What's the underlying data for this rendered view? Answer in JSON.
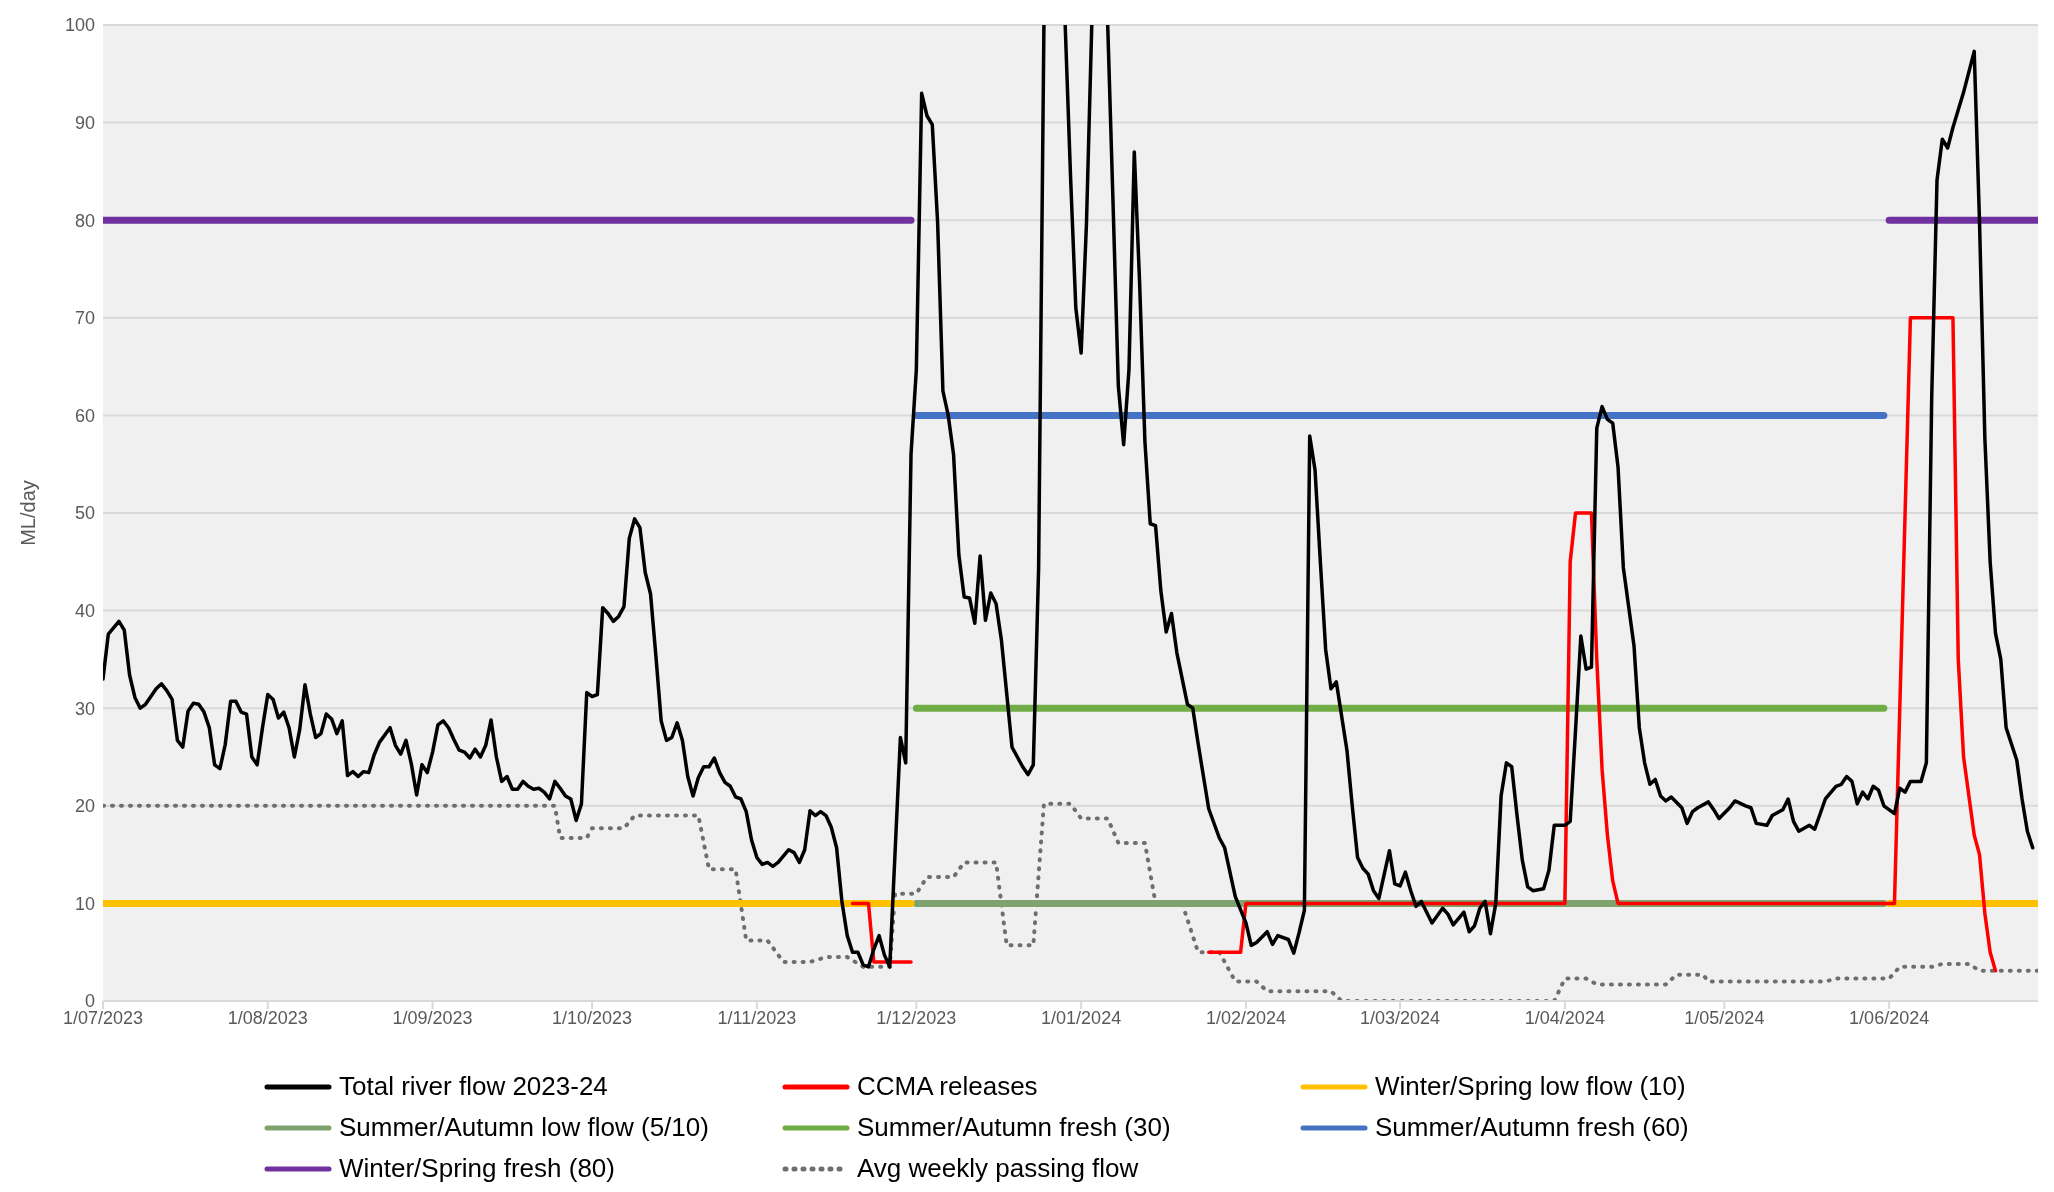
{
  "chart_data": {
    "type": "line",
    "ylabel": "ML/day",
    "ylim": [
      0,
      100
    ],
    "yticks": [
      0,
      10,
      20,
      30,
      40,
      50,
      60,
      70,
      80,
      90,
      100
    ],
    "xlim": [
      "2023-07-01",
      "2024-06-29"
    ],
    "xticks": [
      {
        "value": "2023-07-01",
        "label": "1/07/2023"
      },
      {
        "value": "2023-08-01",
        "label": "1/08/2023"
      },
      {
        "value": "2023-09-01",
        "label": "1/09/2023"
      },
      {
        "value": "2023-10-01",
        "label": "1/10/2023"
      },
      {
        "value": "2023-11-01",
        "label": "1/11/2023"
      },
      {
        "value": "2023-12-01",
        "label": "1/12/2023"
      },
      {
        "value": "2024-01-01",
        "label": "1/01/2024"
      },
      {
        "value": "2024-02-01",
        "label": "1/02/2024"
      },
      {
        "value": "2024-03-01",
        "label": "1/03/2024"
      },
      {
        "value": "2024-04-01",
        "label": "1/04/2024"
      },
      {
        "value": "2024-05-01",
        "label": "1/05/2024"
      },
      {
        "value": "2024-06-01",
        "label": "1/06/2024"
      }
    ],
    "grid": "y",
    "legend": "bottom",
    "marker": "none",
    "series": [
      {
        "name": "Total river flow 2023-24",
        "color": "#000000",
        "line_style": "solid",
        "x": [
          "2023-07-01",
          "2023-07-02",
          "2023-07-04",
          "2023-07-05",
          "2023-07-06",
          "2023-07-07",
          "2023-07-08",
          "2023-07-09",
          "2023-07-11",
          "2023-07-12",
          "2023-07-13",
          "2023-07-14",
          "2023-07-15",
          "2023-07-16",
          "2023-07-17",
          "2023-07-18",
          "2023-07-19",
          "2023-07-20",
          "2023-07-21",
          "2023-07-22",
          "2023-07-23",
          "2023-07-24",
          "2023-07-25",
          "2023-07-26",
          "2023-07-27",
          "2023-07-28",
          "2023-07-29",
          "2023-07-30",
          "2023-07-31",
          "2023-08-01",
          "2023-08-02",
          "2023-08-03",
          "2023-08-04",
          "2023-08-05",
          "2023-08-06",
          "2023-08-07",
          "2023-08-08",
          "2023-08-09",
          "2023-08-10",
          "2023-08-11",
          "2023-08-12",
          "2023-08-13",
          "2023-08-14",
          "2023-08-15",
          "2023-08-16",
          "2023-08-17",
          "2023-08-18",
          "2023-08-19",
          "2023-08-20",
          "2023-08-21",
          "2023-08-22",
          "2023-08-24",
          "2023-08-25",
          "2023-08-26",
          "2023-08-27",
          "2023-08-28",
          "2023-08-29",
          "2023-08-30",
          "2023-08-31",
          "2023-09-01",
          "2023-09-02",
          "2023-09-03",
          "2023-09-04",
          "2023-09-05",
          "2023-09-06",
          "2023-09-07",
          "2023-09-08",
          "2023-09-09",
          "2023-09-10",
          "2023-09-11",
          "2023-09-12",
          "2023-09-13",
          "2023-09-14",
          "2023-09-15",
          "2023-09-16",
          "2023-09-17",
          "2023-09-18",
          "2023-09-19",
          "2023-09-20",
          "2023-09-21",
          "2023-09-22",
          "2023-09-23",
          "2023-09-24",
          "2023-09-25",
          "2023-09-26",
          "2023-09-27",
          "2023-09-28",
          "2023-09-29",
          "2023-09-30",
          "2023-10-01",
          "2023-10-02",
          "2023-10-03",
          "2023-10-04",
          "2023-10-05",
          "2023-10-06",
          "2023-10-07",
          "2023-10-08",
          "2023-10-09",
          "2023-10-10",
          "2023-10-11",
          "2023-10-12",
          "2023-10-13",
          "2023-10-14",
          "2023-10-15",
          "2023-10-16",
          "2023-10-17",
          "2023-10-18",
          "2023-10-19",
          "2023-10-20",
          "2023-10-21",
          "2023-10-22",
          "2023-10-23",
          "2023-10-24",
          "2023-10-25",
          "2023-10-26",
          "2023-10-27",
          "2023-10-28",
          "2023-10-29",
          "2023-10-30",
          "2023-10-31",
          "2023-11-01",
          "2023-11-02",
          "2023-11-03",
          "2023-11-04",
          "2023-11-05",
          "2023-11-07",
          "2023-11-08",
          "2023-11-09",
          "2023-11-10",
          "2023-11-11",
          "2023-11-12",
          "2023-11-13",
          "2023-11-14",
          "2023-11-15",
          "2023-11-16",
          "2023-11-17",
          "2023-11-18",
          "2023-11-19",
          "2023-11-20",
          "2023-11-21",
          "2023-11-22",
          "2023-11-23",
          "2023-11-24",
          "2023-11-25",
          "2023-11-26",
          "2023-11-28",
          "2023-11-29",
          "2023-11-30",
          "2023-12-01",
          "2023-12-02",
          "2023-12-03",
          "2023-12-04",
          "2023-12-05",
          "2023-12-06",
          "2023-12-07",
          "2023-12-08",
          "2023-12-09",
          "2023-12-10",
          "2023-12-11",
          "2023-12-12",
          "2023-12-13",
          "2023-12-14",
          "2023-12-15",
          "2023-12-16",
          "2023-12-17",
          "2023-12-19",
          "2023-12-21",
          "2023-12-22",
          "2023-12-23",
          "2023-12-24",
          "2023-12-25",
          "2023-12-26",
          "2023-12-29",
          "2023-12-30",
          "2023-12-31",
          "2024-01-01",
          "2024-01-02",
          "2024-01-03",
          "2024-01-04",
          "2024-01-06",
          "2024-01-07",
          "2024-01-08",
          "2024-01-09",
          "2024-01-10",
          "2024-01-11",
          "2024-01-12",
          "2024-01-13",
          "2024-01-14",
          "2024-01-15",
          "2024-01-16",
          "2024-01-17",
          "2024-01-18",
          "2024-01-19",
          "2024-01-21",
          "2024-01-22",
          "2024-01-23",
          "2024-01-25",
          "2024-01-27",
          "2024-01-28",
          "2024-01-30",
          "2024-02-01",
          "2024-02-02",
          "2024-02-03",
          "2024-02-05",
          "2024-02-06",
          "2024-02-07",
          "2024-02-09",
          "2024-02-10",
          "2024-02-11",
          "2024-02-12",
          "2024-02-13",
          "2024-02-14",
          "2024-02-15",
          "2024-02-16",
          "2024-02-17",
          "2024-02-18",
          "2024-02-20",
          "2024-02-21",
          "2024-02-22",
          "2024-02-23",
          "2024-02-24",
          "2024-02-25",
          "2024-02-26",
          "2024-02-28",
          "2024-02-29",
          "2024-03-01",
          "2024-03-02",
          "2024-03-03",
          "2024-03-04",
          "2024-03-05",
          "2024-03-07",
          "2024-03-09",
          "2024-03-10",
          "2024-03-11",
          "2024-03-13",
          "2024-03-14",
          "2024-03-15",
          "2024-03-16",
          "2024-03-17",
          "2024-03-18",
          "2024-03-19",
          "2024-03-20",
          "2024-03-21",
          "2024-03-22",
          "2024-03-23",
          "2024-03-24",
          "2024-03-25",
          "2024-03-26",
          "2024-03-28",
          "2024-03-29",
          "2024-03-30",
          "2024-04-01",
          "2024-04-02",
          "2024-04-03",
          "2024-04-04",
          "2024-04-05",
          "2024-04-06",
          "2024-04-07",
          "2024-04-08",
          "2024-04-09",
          "2024-04-10",
          "2024-04-11",
          "2024-04-12",
          "2024-04-14",
          "2024-04-15",
          "2024-04-16",
          "2024-04-17",
          "2024-04-18",
          "2024-04-19",
          "2024-04-20",
          "2024-04-21",
          "2024-04-23",
          "2024-04-24",
          "2024-04-25",
          "2024-04-26",
          "2024-04-28",
          "2024-04-29",
          "2024-04-30",
          "2024-05-02",
          "2024-05-03",
          "2024-05-05",
          "2024-05-06",
          "2024-05-07",
          "2024-05-09",
          "2024-05-10",
          "2024-05-12",
          "2024-05-13",
          "2024-05-14",
          "2024-05-15",
          "2024-05-17",
          "2024-05-18",
          "2024-05-20",
          "2024-05-22",
          "2024-05-23",
          "2024-05-24",
          "2024-05-25",
          "2024-05-26",
          "2024-05-27",
          "2024-05-28",
          "2024-05-29",
          "2024-05-30",
          "2024-05-31",
          "2024-06-02",
          "2024-06-03",
          "2024-06-04",
          "2024-06-05",
          "2024-06-07",
          "2024-06-08",
          "2024-06-09",
          "2024-06-10",
          "2024-06-11",
          "2024-06-12",
          "2024-06-13",
          "2024-06-15",
          "2024-06-17",
          "2024-06-18",
          "2024-06-19",
          "2024-06-20",
          "2024-06-21",
          "2024-06-22",
          "2024-06-23",
          "2024-06-25",
          "2024-06-26",
          "2024-06-27",
          "2024-06-28"
        ],
        "values": [
          33,
          37.6,
          38.9,
          38,
          33.4,
          31.1,
          30,
          30.4,
          32,
          32.5,
          31.8,
          30.9,
          26.7,
          26,
          29.7,
          30.5,
          30.4,
          29.6,
          28,
          24.2,
          23.8,
          26.3,
          30.7,
          30.7,
          29.6,
          29.4,
          25,
          24.2,
          28,
          31.4,
          30.9,
          29,
          29.6,
          28,
          25,
          27.8,
          32.4,
          29.4,
          27,
          27.4,
          29.4,
          28.9,
          27.4,
          28.7,
          23.1,
          23.5,
          23,
          23.5,
          23.4,
          25.2,
          26.5,
          28,
          26.2,
          25.3,
          26.7,
          24.3,
          21.1,
          24.2,
          23.4,
          25.5,
          28.3,
          28.7,
          28,
          26.8,
          25.7,
          25.5,
          24.9,
          25.8,
          25,
          26.2,
          28.8,
          25,
          22.5,
          23,
          21.7,
          21.7,
          22.5,
          22,
          21.7,
          21.8,
          21.4,
          20.7,
          22.5,
          21.8,
          21,
          20.7,
          18.5,
          20.2,
          31.6,
          31.2,
          31.4,
          40.3,
          39.7,
          38.9,
          39.4,
          40.4,
          47.4,
          49.4,
          48.5,
          43.9,
          41.7,
          35.4,
          28.7,
          26.7,
          27,
          28.5,
          26.7,
          23,
          21,
          22.9,
          24,
          24,
          24.9,
          23.4,
          22.4,
          22,
          20.9,
          20.7,
          19.4,
          16.5,
          14.7,
          14,
          14.2,
          13.8,
          14.2,
          15.5,
          15.2,
          14.2,
          15.5,
          19.5,
          19,
          19.4,
          19,
          17.8,
          15.7,
          10.2,
          6.7,
          5,
          5,
          3.7,
          3.5,
          5.3,
          6.7,
          4.7,
          3.5,
          27,
          24.4,
          56,
          64.7,
          93,
          90.7,
          89.8,
          79.8,
          62.5,
          60,
          56,
          45.7,
          41.4,
          41.3,
          38.7,
          45.6,
          39,
          41.8,
          40.7,
          37,
          26,
          24,
          23.2,
          24.2,
          44.3,
          100,
          null,
          100,
          84.6,
          71,
          66.4,
          79.6,
          100,
          null,
          100,
          81.8,
          63,
          57,
          64.7,
          87,
          73.6,
          57.3,
          48.9,
          48.7,
          42,
          37.8,
          39.7,
          35.7,
          30.4,
          30,
          26.4,
          19.7,
          16.7,
          15.7,
          10.7,
          8,
          5.7,
          6,
          7.1,
          5.8,
          6.7,
          6.3,
          4.9,
          7,
          9.3,
          57.9,
          54.4,
          45,
          36,
          32,
          32.7,
          25.7,
          20,
          14.7,
          13.6,
          13,
          11.3,
          10.5,
          15.4,
          12,
          11.8,
          13.2,
          11.3,
          9.7,
          10.2,
          8,
          9.5,
          8.9,
          7.8,
          9.1,
          7.1,
          7.7,
          9.5,
          10.2,
          6.9,
          10,
          21,
          24.4,
          24,
          19,
          14.4,
          11.7,
          11.3,
          11.5,
          13.4,
          18,
          18,
          18.4,
          27.7,
          37.4,
          34,
          34.2,
          58.7,
          60.9,
          59.6,
          59.2,
          54.7,
          44.4,
          36.4,
          28,
          24.4,
          22.2,
          22.7,
          21,
          20.5,
          20.9,
          19.8,
          18.2,
          19.4,
          19.8,
          20.4,
          19.6,
          18.7,
          19.8,
          20.5,
          20,
          19.8,
          18.2,
          18,
          19,
          19.6,
          20.7,
          18.4,
          17.4,
          18,
          17.6,
          20.7,
          22,
          22.2,
          23,
          22.5,
          20.2,
          21.4,
          20.7,
          22,
          21.6,
          20,
          19.2,
          21.8,
          21.4,
          22.5,
          22.5,
          24.4,
          61.7,
          84.1,
          88.3,
          87.4,
          89.5,
          93.1,
          97.3,
          79.8,
          57.7,
          45,
          37.7,
          35,
          28,
          24.7,
          20.7,
          17.4,
          15.7
        ]
      },
      {
        "name": "CCMA releases",
        "color": "#ff0000",
        "line_style": "solid",
        "x": [
          "2023-11-19",
          "2023-11-22",
          "2023-11-23",
          "2023-11-30",
          "2023-12-15",
          "2024-01-25",
          "2024-01-31",
          "2024-02-01",
          "2024-04-01",
          "2024-04-02",
          "2024-04-03",
          "2024-04-06",
          "2024-04-07",
          "2024-04-08",
          "2024-04-09",
          "2024-04-10",
          "2024-04-11",
          "2024-06-02",
          "2024-06-05",
          "2024-06-13",
          "2024-06-14",
          "2024-06-15",
          "2024-06-17",
          "2024-06-18",
          "2024-06-19",
          "2024-06-20",
          "2024-06-21"
        ],
        "values": [
          10,
          10,
          4,
          4,
          null,
          5,
          5,
          10,
          10,
          45,
          50,
          50,
          35,
          23.7,
          17,
          12.3,
          10,
          10,
          70,
          70,
          35,
          25,
          17,
          15,
          9,
          5,
          3.1
        ]
      },
      {
        "name": "Winter/Spring low flow (10)",
        "color": "#ffc000",
        "line_style": "solid",
        "x": [
          "2023-07-01",
          "2023-11-30",
          "2024-03-01",
          "2024-06-01",
          "2024-06-29"
        ],
        "values": [
          10,
          10,
          null,
          10,
          10
        ]
      },
      {
        "name": "Summer/Autumn low flow (5/10)",
        "color": "#7fa36c",
        "line_style": "solid",
        "x": [
          "2023-12-01",
          "2024-05-31"
        ],
        "values": [
          10,
          10
        ]
      },
      {
        "name": "Summer/Autumn fresh (30)",
        "color": "#70ad47",
        "line_style": "solid",
        "x": [
          "2023-12-01",
          "2024-05-31"
        ],
        "values": [
          30,
          30
        ]
      },
      {
        "name": "Summer/Autumn fresh (60)",
        "color": "#4472c4",
        "line_style": "solid",
        "x": [
          "2023-12-01",
          "2024-05-31"
        ],
        "values": [
          60,
          60
        ]
      },
      {
        "name": "Winter/Spring fresh (80)",
        "color": "#7030a0",
        "line_style": "solid",
        "x": [
          "2023-07-01",
          "2023-11-30",
          "2024-03-01",
          "2024-06-01",
          "2024-06-29"
        ],
        "values": [
          80,
          80,
          null,
          80,
          80
        ]
      },
      {
        "name": "Avg weekly passing flow",
        "color": "#6e6e6e",
        "line_style": "dotted",
        "x": [
          "2023-07-01",
          "2023-09-24",
          "2023-09-25",
          "2023-09-30",
          "2023-10-01",
          "2023-10-07",
          "2023-10-09",
          "2023-10-21",
          "2023-10-23",
          "2023-10-28",
          "2023-10-30",
          "2023-11-03",
          "2023-11-06",
          "2023-11-11",
          "2023-11-14",
          "2023-11-18",
          "2023-11-21",
          "2023-11-26",
          "2023-11-27",
          "2023-12-01",
          "2023-12-03",
          "2023-12-08",
          "2023-12-10",
          "2023-12-16",
          "2023-12-18",
          "2023-12-23",
          "2023-12-25",
          "2023-12-30",
          "2024-01-01",
          "2024-01-06",
          "2024-01-08",
          "2024-01-13",
          "2024-01-15",
          "2024-01-20",
          "2024-01-23",
          "2024-01-27",
          "2024-01-30",
          "2024-02-03",
          "2024-02-05",
          "2024-02-17",
          "2024-02-19",
          "2024-03-30",
          "2024-04-01",
          "2024-04-05",
          "2024-04-07",
          "2024-04-20",
          "2024-04-22",
          "2024-04-27",
          "2024-04-28",
          "2024-05-20",
          "2024-05-22",
          "2024-06-01",
          "2024-06-03",
          "2024-06-09",
          "2024-06-11",
          "2024-06-16",
          "2024-06-18",
          "2024-06-29"
        ],
        "values": [
          20,
          20,
          16.7,
          16.7,
          17.7,
          17.7,
          19,
          19,
          13.5,
          13.5,
          6.2,
          6.2,
          4,
          4,
          4.5,
          4.5,
          3.5,
          3.5,
          11,
          11,
          12.7,
          12.7,
          14.2,
          14.2,
          5.7,
          5.7,
          20.2,
          20.2,
          18.7,
          18.7,
          16.2,
          16.2,
          10,
          10,
          5,
          5,
          2,
          2,
          1,
          1,
          0,
          0,
          2.3,
          2.3,
          1.7,
          1.7,
          2.7,
          2.7,
          2,
          2,
          2.3,
          2.3,
          3.5,
          3.5,
          3.8,
          3.8,
          3.1,
          3.1
        ]
      }
    ]
  }
}
